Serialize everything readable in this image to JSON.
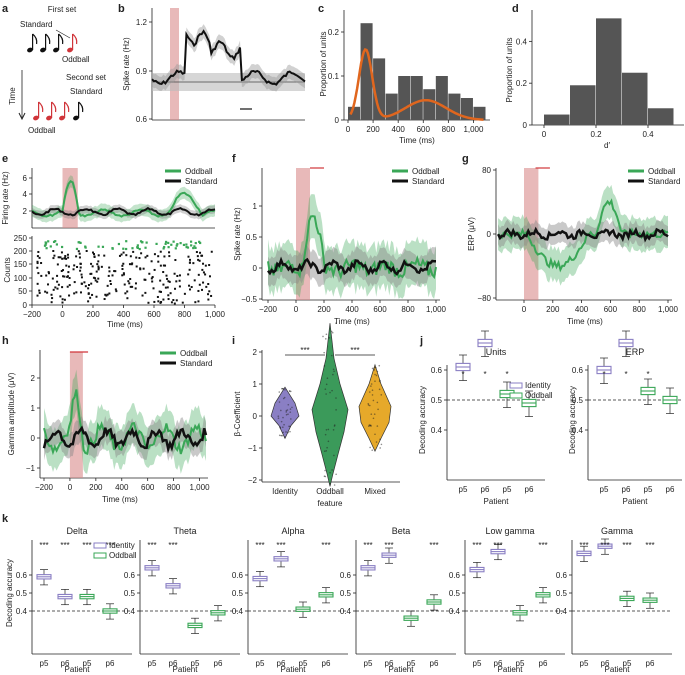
{
  "colors": {
    "oddball": "#3aa757",
    "standard": "#111111",
    "identity": "#8a7fc4",
    "mixed": "#e6a92a",
    "stim": "#d98a8a",
    "orange": "#e0661e",
    "gray": "#555555"
  },
  "panel_letters": [
    "a",
    "b",
    "c",
    "d",
    "e",
    "f",
    "g",
    "h",
    "i",
    "j",
    "k"
  ],
  "a": {
    "first_set": "First set",
    "standard": "Standard",
    "oddball": "Oddball",
    "second_set": "Second set",
    "time": "Time"
  },
  "b": {
    "ylabel": "Spike rate (Hz)",
    "yticks": [
      "1.2",
      "0.9",
      "0.6"
    ]
  },
  "c": {
    "ylabel": "Proportion of units",
    "xlabel": "Time (ms)",
    "yticks": [
      "0",
      "0.1",
      "0.2"
    ],
    "xticks": [
      "0",
      "200",
      "400",
      "600",
      "800",
      "1,000"
    ]
  },
  "d": {
    "ylabel": "Proportion of units",
    "xlabel": "d′",
    "yticks": [
      "0",
      "0.2",
      "0.4"
    ],
    "xticks": [
      "0",
      "0.2",
      "0.4"
    ]
  },
  "e": {
    "legend": [
      "Oddball",
      "Standard"
    ],
    "ylabel_top": "Firing rate (Hz)",
    "ylabel_bottom": "Counts",
    "xlabel": "Time (ms)",
    "yticks_top": [
      "2",
      "4",
      "6"
    ],
    "yticks_bottom": [
      "0",
      "50",
      "100",
      "150",
      "200",
      "250"
    ],
    "xticks": [
      "−200",
      "0",
      "200",
      "400",
      "600",
      "800",
      "1,000"
    ]
  },
  "f": {
    "legend": [
      "Oddball",
      "Standard"
    ],
    "ylabel": "Spike rate (Hz)",
    "xlabel": "Time (ms)",
    "yticks": [
      "1",
      "0.5",
      "0",
      "−0.5"
    ],
    "xticks": [
      "−200",
      "0",
      "200",
      "400",
      "600",
      "800",
      "1,000"
    ]
  },
  "g": {
    "legend": [
      "Oddball",
      "Standard"
    ],
    "ylabel": "ERP (μV)",
    "xlabel": "Time (ms)",
    "yticks": [
      "80",
      "0",
      "−80"
    ],
    "xticks": [
      "0",
      "200",
      "400",
      "600",
      "800",
      "1,000"
    ]
  },
  "h": {
    "legend": [
      "Oddball",
      "Standard"
    ],
    "ylabel": "Gamma amplitude (μV)",
    "xlabel": "Time (ms)",
    "yticks": [
      "2",
      "1",
      "0",
      "−1"
    ],
    "xticks": [
      "−200",
      "0",
      "200",
      "400",
      "600",
      "800",
      "1,000"
    ]
  },
  "i": {
    "ylabel": "β-Coefficient",
    "xlabel": "feature",
    "categories": [
      "Identity",
      "Oddball",
      "Mixed"
    ],
    "sig": [
      "***",
      "***"
    ],
    "yticks": [
      "2",
      "1",
      "0",
      "−1",
      "−2"
    ]
  },
  "j": {
    "titles": [
      "Units",
      "ERP"
    ],
    "ylabel": "Decoding accuracy",
    "xlabel": "Patient",
    "legend": [
      "Identity",
      "Oddball"
    ],
    "yticks": [
      "0.6",
      "0.5",
      "0.4"
    ],
    "patients": [
      "p5",
      "p6",
      "p5",
      "p6"
    ],
    "sig": [
      "*",
      "*",
      "*"
    ]
  },
  "k": {
    "titles": [
      "Delta",
      "Theta",
      "Alpha",
      "Beta",
      "Low gamma",
      "Gamma"
    ],
    "ylabel": "Decoding accuracy",
    "xlabel": "Patient",
    "legend": [
      "Identity",
      "Oddball"
    ],
    "yticks": [
      "0.6",
      "0.5",
      "0.4"
    ],
    "patients": [
      "p5",
      "p6",
      "p5",
      "p6"
    ],
    "sig": "***"
  },
  "chart_data": [
    {
      "panel": "c",
      "type": "bar",
      "xlabel": "Time (ms)",
      "ylabel": "Proportion of units",
      "x": [
        50,
        150,
        250,
        350,
        450,
        550,
        650,
        750,
        850,
        950,
        1050
      ],
      "values": [
        0.03,
        0.22,
        0.14,
        0.06,
        0.1,
        0.1,
        0.07,
        0.1,
        0.06,
        0.05,
        0.03
      ],
      "ylim": [
        0,
        0.25
      ]
    },
    {
      "panel": "d",
      "type": "bar",
      "xlabel": "d′",
      "ylabel": "Proportion of units",
      "x": [
        0.05,
        0.15,
        0.25,
        0.35,
        0.45
      ],
      "values": [
        0.05,
        0.19,
        0.51,
        0.25,
        0.08
      ],
      "ylim": [
        0,
        0.55
      ]
    },
    {
      "panel": "j-units",
      "type": "box",
      "title": "Units",
      "ylabel": "Decoding accuracy",
      "categories": [
        "p5",
        "p6",
        "p5",
        "p6"
      ],
      "series": [
        {
          "name": "Identity",
          "medians": [
            0.61,
            0.69
          ]
        },
        {
          "name": "Oddball",
          "medians": [
            0.52,
            0.49
          ]
        }
      ],
      "ylim": [
        0.4,
        0.8
      ]
    },
    {
      "panel": "j-erp",
      "type": "box",
      "title": "ERP",
      "ylabel": "Decoding accuracy",
      "categories": [
        "p5",
        "p6",
        "p5",
        "p6"
      ],
      "series": [
        {
          "name": "Identity",
          "medians": [
            0.6,
            0.69
          ]
        },
        {
          "name": "Oddball",
          "medians": [
            0.53,
            0.5
          ]
        }
      ],
      "ylim": [
        0.4,
        0.8
      ]
    },
    {
      "panel": "k",
      "type": "box",
      "ylabel": "Decoding accuracy",
      "categories": [
        "p5",
        "p6",
        "p5",
        "p6"
      ],
      "bands": [
        {
          "title": "Delta",
          "identity": [
            0.59,
            0.48
          ],
          "oddball": [
            0.48,
            0.4
          ]
        },
        {
          "title": "Theta",
          "identity": [
            0.64,
            0.54
          ],
          "oddball": [
            0.32,
            0.39
          ]
        },
        {
          "title": "Alpha",
          "identity": [
            0.58,
            0.69
          ],
          "oddball": [
            0.41,
            0.49
          ]
        },
        {
          "title": "Beta",
          "identity": [
            0.64,
            0.71
          ],
          "oddball": [
            0.36,
            0.45
          ]
        },
        {
          "title": "Low gamma",
          "identity": [
            0.63,
            0.73
          ],
          "oddball": [
            0.39,
            0.49
          ]
        },
        {
          "title": "Gamma",
          "identity": [
            0.72,
            0.76
          ],
          "oddball": [
            0.47,
            0.46
          ]
        }
      ],
      "ylim": [
        0.3,
        0.8
      ]
    }
  ]
}
